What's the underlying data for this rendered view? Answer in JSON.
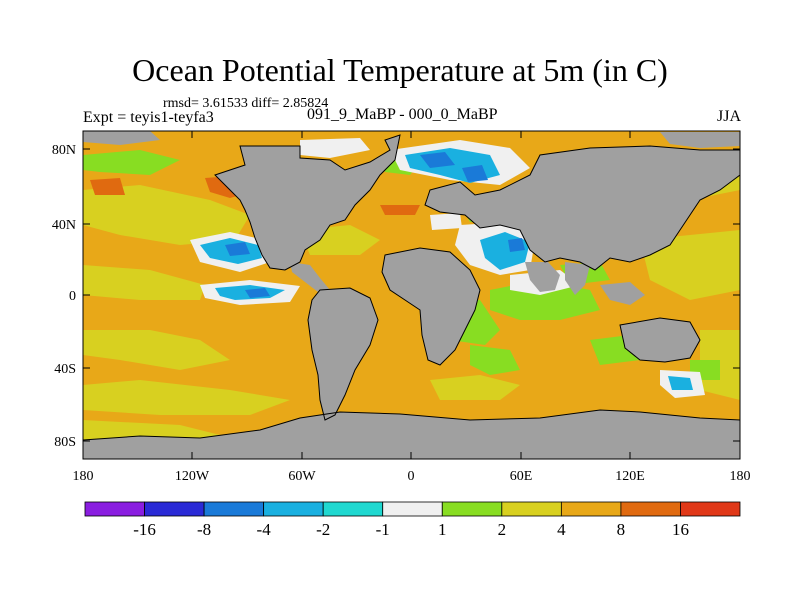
{
  "title": "Ocean Potential Temperature at 5m (in C)",
  "stats": "rmsd= 3.61533 diff= 2.85824",
  "expt_label": "Expt = teyis1-teyfa3",
  "experiment": "091_9_MaBP - 000_0_MaBP",
  "season": "JJA",
  "y_ticks": [
    "80N",
    "40N",
    "0",
    "40S",
    "80S"
  ],
  "x_ticks": [
    "180",
    "120W",
    "60W",
    "0",
    "60E",
    "120E",
    "180"
  ],
  "colorbar": {
    "labels": [
      "-16",
      "-8",
      "-4",
      "-2",
      "-1",
      "1",
      "2",
      "4",
      "8",
      "16"
    ],
    "colors": [
      "#8a1ee0",
      "#2a2ad6",
      "#1a7ad8",
      "#1ab0e0",
      "#20d8d0",
      "#f0f0f0",
      "#88dd22",
      "#d8d020",
      "#e8a818",
      "#e06a10",
      "#e03818"
    ]
  },
  "colors": {
    "land": "#a0a0a0",
    "ocean_base": "#e8a818",
    "warm_dark": "#e06a10",
    "warm_yellow": "#d8d020",
    "green": "#88dd22",
    "white": "#f0f0f0",
    "cyan": "#1ab0e0",
    "blue": "#1a7ad8"
  }
}
